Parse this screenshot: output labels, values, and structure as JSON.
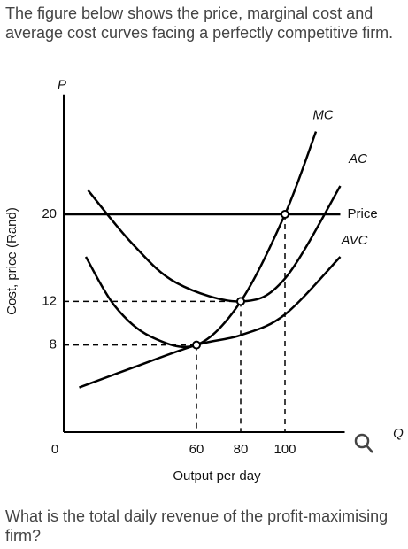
{
  "question": {
    "intro": "The figure below shows the price, marginal cost and average cost curves facing a perfectly competitive firm.",
    "prompt": "What is the total daily revenue of the profit-maximising firm?"
  },
  "chart_data": {
    "type": "line",
    "x_label": "Output per day",
    "y_label": "Cost, price (Rand)",
    "y_axis_symbol": "P",
    "x_axis_symbol": "Q",
    "xlim": [
      0,
      127
    ],
    "ylim": [
      0,
      31
    ],
    "xticks": [
      0,
      60,
      80,
      100
    ],
    "yticks": [
      8,
      12,
      20
    ],
    "series": [
      {
        "name": "MC",
        "color": "#000000",
        "x": [
          10,
          23,
          39,
          60,
          80,
          100,
          114
        ],
        "values": [
          16.1,
          11.6,
          8.8,
          8,
          12,
          20,
          27.6
        ]
      },
      {
        "name": "AC",
        "color": "#000000",
        "x": [
          11,
          31,
          51,
          80,
          100,
          125
        ],
        "values": [
          22.2,
          17.3,
          13.7,
          12,
          14.1,
          22.6
        ]
      },
      {
        "name": "Price",
        "color": "#000000",
        "x": [
          0,
          125
        ],
        "values": [
          20,
          20
        ]
      },
      {
        "name": "AVC",
        "color": "#000000",
        "x": [
          7,
          31,
          60,
          80,
          100,
          125
        ],
        "values": [
          4.1,
          5.9,
          8,
          8.9,
          10.8,
          16.1
        ]
      }
    ]
  }
}
